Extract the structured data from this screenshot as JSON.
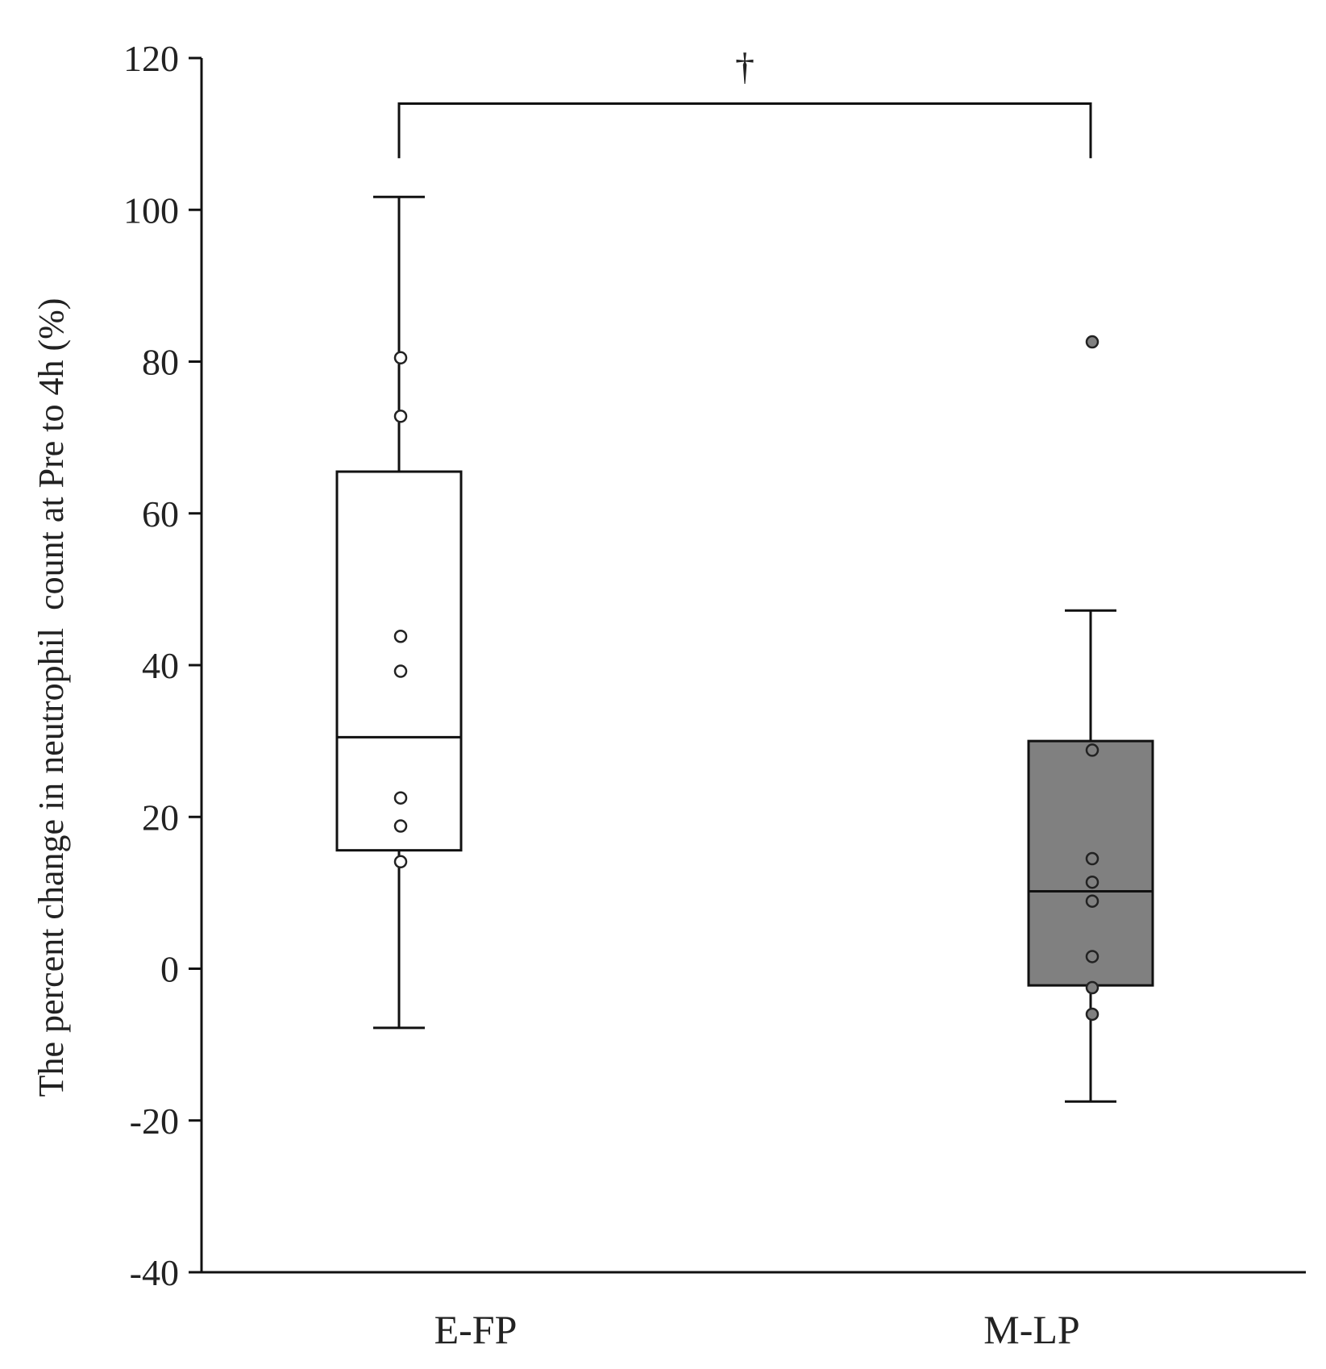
{
  "chart_data": {
    "type": "box",
    "title": "",
    "xlabel": "",
    "ylabel": "The percent change in neutrophil  count at Pre to 4h (%)",
    "ylim": [
      -40,
      120
    ],
    "yticks": [
      -40,
      -20,
      0,
      20,
      40,
      60,
      80,
      100,
      120
    ],
    "categories": [
      "E-FP",
      "M-LP"
    ],
    "series": [
      {
        "name": "E-FP",
        "fill": "#ffffff",
        "whisker_low": -7.8,
        "q1": 15.6,
        "median": 30.5,
        "q3": 65.5,
        "whisker_high": 101.7,
        "points": [
          80.5,
          72.8,
          43.8,
          39.2,
          22.5,
          18.8,
          14.1
        ]
      },
      {
        "name": "M-LP",
        "fill": "#808080",
        "whisker_low": -17.5,
        "q1": -2.2,
        "median": 10.2,
        "q3": 30.0,
        "whisker_high": 47.2,
        "points": [
          82.6,
          28.8,
          14.5,
          11.4,
          8.9,
          1.6,
          -2.5,
          -6.0
        ]
      }
    ],
    "significance": {
      "label": "†",
      "between": [
        "E-FP",
        "M-LP"
      ],
      "y": 114
    }
  }
}
